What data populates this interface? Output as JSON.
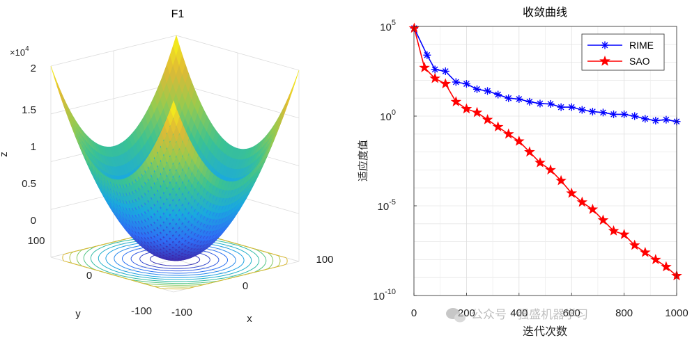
{
  "chart_data": [
    {
      "type": "surface3d",
      "title": "F1",
      "function": "z = x^2 + y^2",
      "xlabel": "x",
      "ylabel": "y",
      "zlabel": "z",
      "xlim": [
        -100,
        100
      ],
      "ylim": [
        -100,
        100
      ],
      "zlim": [
        0,
        20000
      ],
      "x_ticks": [
        "-100",
        "0",
        "100"
      ],
      "y_ticks": [
        "-100",
        "0",
        "100"
      ],
      "z_ticks": [
        "0",
        "0.5",
        "1",
        "1.5",
        "2"
      ],
      "z_multiplier_base": "×10",
      "z_multiplier_exp": "4",
      "contour_levels": [
        800,
        1600,
        2500,
        3600,
        4800,
        6200,
        7600,
        9200,
        10800,
        12500,
        14400,
        16400
      ],
      "colormap": [
        "#3e26a8",
        "#2f6ef5",
        "#1aa9df",
        "#3bc293",
        "#97ca4f",
        "#e0b935",
        "#f9fb15"
      ]
    },
    {
      "type": "line",
      "title": "收敛曲线",
      "xlabel": "迭代次数",
      "ylabel": "适应度值",
      "yscale": "log",
      "xlim": [
        0,
        1000
      ],
      "ylim_exp": [
        -10,
        5
      ],
      "x_ticks": [
        "0",
        "200",
        "400",
        "600",
        "800",
        "1000"
      ],
      "y_tick_base": "10",
      "y_tick_exps": [
        "5",
        "0",
        "-5",
        "-10"
      ],
      "legend_position": "top-right",
      "series": [
        {
          "name": "RIME",
          "color": "#0000ff",
          "marker": "asterisk",
          "x": [
            1,
            50,
            80,
            120,
            160,
            200,
            240,
            280,
            320,
            360,
            400,
            440,
            480,
            520,
            560,
            600,
            640,
            680,
            720,
            760,
            800,
            840,
            880,
            920,
            960,
            1000
          ],
          "log10_y": [
            4.9,
            3.4,
            2.6,
            2.5,
            1.9,
            1.8,
            1.5,
            1.4,
            1.2,
            1.0,
            0.95,
            0.8,
            0.7,
            0.68,
            0.5,
            0.5,
            0.35,
            0.25,
            0.2,
            0.1,
            0.1,
            0.0,
            -0.15,
            -0.25,
            -0.2,
            -0.3
          ]
        },
        {
          "name": "SAO",
          "color": "#ff0000",
          "marker": "pentagram",
          "x": [
            1,
            40,
            80,
            120,
            160,
            200,
            240,
            280,
            320,
            360,
            400,
            440,
            480,
            520,
            560,
            600,
            640,
            680,
            720,
            760,
            800,
            840,
            880,
            920,
            960,
            1000
          ],
          "log10_y": [
            4.9,
            2.7,
            2.1,
            1.8,
            0.8,
            0.4,
            0.2,
            -0.2,
            -0.6,
            -1.0,
            -1.4,
            -2.0,
            -2.6,
            -3.0,
            -3.6,
            -4.3,
            -4.8,
            -5.2,
            -5.8,
            -6.4,
            -6.6,
            -7.2,
            -7.6,
            -8.0,
            -8.4,
            -8.9
          ]
        }
      ]
    }
  ],
  "watermark": "公众号 · 强盛机器学习"
}
